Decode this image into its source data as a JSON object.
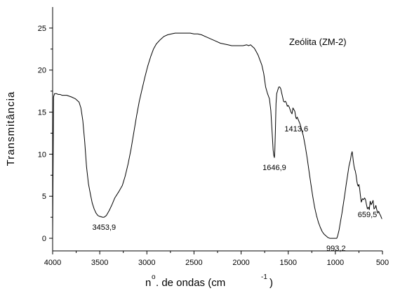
{
  "chart_data": {
    "type": "line",
    "title": "",
    "legend_text": "Zeólita (ZM-2)",
    "ylabel": "Transmitância",
    "xlabel": {
      "prefix": "n",
      "degree": "o",
      "main": ". de ondas (cm",
      "superscript": "-1",
      "close": ")"
    },
    "x_reversed": true,
    "xlim": [
      4000,
      500
    ],
    "ylim": [
      -1.5,
      27.5
    ],
    "x_ticks": [
      4000,
      3500,
      3000,
      2500,
      2000,
      1500,
      1000,
      500
    ],
    "y_ticks": [
      0,
      5,
      10,
      15,
      20,
      25
    ],
    "grid": false,
    "series": [
      {
        "x": [
          4000,
          3990,
          3980,
          3960,
          3940,
          3920,
          3900,
          3850,
          3800,
          3760,
          3720,
          3700,
          3680,
          3660,
          3640,
          3620,
          3600,
          3580,
          3560,
          3540,
          3520,
          3500,
          3470,
          3454,
          3430,
          3400,
          3370,
          3340,
          3300,
          3260,
          3230,
          3200,
          3170,
          3140,
          3110,
          3080,
          3050,
          3020,
          2990,
          2960,
          2930,
          2900,
          2860,
          2820,
          2780,
          2740,
          2700,
          2660,
          2620,
          2580,
          2540,
          2500,
          2460,
          2420,
          2380,
          2340,
          2300,
          2260,
          2220,
          2180,
          2140,
          2100,
          2060,
          2020,
          1980,
          1940,
          1920,
          1900,
          1880,
          1860,
          1840,
          1820,
          1800,
          1780,
          1760,
          1740,
          1720,
          1700,
          1685,
          1670,
          1660,
          1652,
          1647,
          1642,
          1636,
          1630,
          1622,
          1612,
          1600,
          1590,
          1580,
          1570,
          1560,
          1550,
          1540,
          1530,
          1520,
          1510,
          1500,
          1490,
          1480,
          1470,
          1460,
          1450,
          1440,
          1430,
          1420,
          1414,
          1405,
          1390,
          1375,
          1360,
          1340,
          1320,
          1300,
          1280,
          1260,
          1240,
          1220,
          1200,
          1180,
          1160,
          1140,
          1120,
          1100,
          1080,
          1060,
          1040,
          1020,
          1000,
          993,
          985,
          975,
          960,
          945,
          930,
          915,
          900,
          885,
          870,
          855,
          840,
          830,
          822,
          816,
          810,
          802,
          795,
          788,
          780,
          772,
          765,
          758,
          750,
          742,
          735,
          725,
          712,
          700,
          690,
          680,
          670,
          660,
          650,
          640,
          630,
          620,
          610,
          600,
          590,
          580,
          570,
          560,
          550,
          540,
          530,
          520,
          510,
          505
        ],
        "y": [
          0,
          16.8,
          17.2,
          17.2,
          17.1,
          17.1,
          17.0,
          17.0,
          16.8,
          16.6,
          16.2,
          15.5,
          14.0,
          11.5,
          8.5,
          6.5,
          5.3,
          4.2,
          3.5,
          3.0,
          2.7,
          2.6,
          2.5,
          2.5,
          2.7,
          3.3,
          4.0,
          4.8,
          5.5,
          6.3,
          7.4,
          8.8,
          10.5,
          12.5,
          14.5,
          16.3,
          17.8,
          19.2,
          20.5,
          21.6,
          22.5,
          23.1,
          23.6,
          24.0,
          24.2,
          24.3,
          24.4,
          24.4,
          24.4,
          24.4,
          24.4,
          24.3,
          24.3,
          24.2,
          24.0,
          23.8,
          23.6,
          23.4,
          23.2,
          23.1,
          23.0,
          22.9,
          22.9,
          22.9,
          22.9,
          23.0,
          22.9,
          23.0,
          22.8,
          22.6,
          22.2,
          21.8,
          21.2,
          20.6,
          19.6,
          18.0,
          17.2,
          16.6,
          15.2,
          12.4,
          10.5,
          9.8,
          9.6,
          10.4,
          13.0,
          16.0,
          17.2,
          17.6,
          18.0,
          18.0,
          17.8,
          17.3,
          16.8,
          16.3,
          16.2,
          16.3,
          16.1,
          15.7,
          15.8,
          15.6,
          15.3,
          15.0,
          14.8,
          15.5,
          15.3,
          15.1,
          14.4,
          14.2,
          14.4,
          14.0,
          13.6,
          13.0,
          12.2,
          11.0,
          9.6,
          8.0,
          6.5,
          5.0,
          3.7,
          2.7,
          1.9,
          1.3,
          0.8,
          0.5,
          0.3,
          0.1,
          0.0,
          0.0,
          0.0,
          0.0,
          0.0,
          0.0,
          0.3,
          1.0,
          2.0,
          3.0,
          4.1,
          5.2,
          6.4,
          7.5,
          8.6,
          9.3,
          10.0,
          10.3,
          9.8,
          9.2,
          8.6,
          8.2,
          8.0,
          7.5,
          6.8,
          6.4,
          6.2,
          6.4,
          5.9,
          5.2,
          4.3,
          4.7,
          4.6,
          4.8,
          4.6,
          4.0,
          3.5,
          3.7,
          3.4,
          4.4,
          4.0,
          4.2,
          4.5,
          3.5,
          3.6,
          3.9,
          3.4,
          3.0,
          3.2,
          2.9,
          2.7,
          2.4,
          2.3
        ]
      }
    ],
    "annotations": [
      {
        "text": "3453,9",
        "x": 3454,
        "y": 2.5
      },
      {
        "text": "1646,9",
        "x": 1647,
        "y": 9.6
      },
      {
        "text": "1413,6",
        "x": 1414,
        "y": 14.2
      },
      {
        "text": "993,2",
        "x": 993,
        "y": 0
      },
      {
        "text": "659,5",
        "x": 660,
        "y": 4.0
      }
    ]
  }
}
